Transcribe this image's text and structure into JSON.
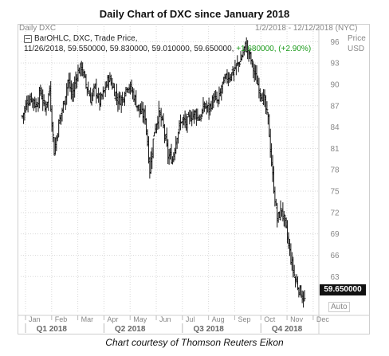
{
  "header": {
    "title": "Daily Chart of DXC since January 2018",
    "ticker_label": "Daily DXC",
    "date_range": "1/2/2018 - 12/12/2018 (NYC)",
    "price_label": "Price",
    "currency_label": "USD",
    "auto_label": "Auto"
  },
  "legend": {
    "line1": "BarOHLC, DXC, Trade Price,",
    "date": "11/26/2018,",
    "ohlc": "59.550000, 59.830000, 59.010000, 59.650000,",
    "change": "+1.680000, (+2.90%)"
  },
  "last_price_tag": "59.650000",
  "caption": "Chart courtesy of Thomson Reuters Eikon",
  "colors": {
    "bars": "#111111",
    "grid": "#d9d9d9",
    "axis_text": "#888888",
    "change": "#1a9a1a"
  },
  "chart_data": {
    "type": "bar",
    "subtype": "ohlc",
    "title": "Daily Chart of DXC since January 2018",
    "y_ticks": [
      63,
      66,
      69,
      72,
      75,
      78,
      81,
      84,
      87,
      90,
      93,
      96
    ],
    "ylim": [
      58,
      98.5
    ],
    "x_months": [
      "Jan",
      "Feb",
      "Mar",
      "Apr",
      "May",
      "Jun",
      "Jul",
      "Aug",
      "Sep",
      "Oct",
      "Nov",
      "Dec"
    ],
    "x_quarters": [
      "Q1 2018",
      "Q2 2018",
      "Q3 2018",
      "Q4 2018"
    ],
    "grid": true,
    "series": [
      {
        "name": "DXC",
        "close_weekly": [
          85.5,
          87.5,
          88.2,
          87.0,
          89.0,
          86.5,
          89.2,
          80.5,
          84.5,
          87.0,
          90.5,
          88.5,
          91.5,
          92.5,
          90.0,
          88.0,
          89.5,
          87.5,
          89.0,
          91.0,
          89.5,
          87.8,
          88.0,
          90.0,
          89.2,
          87.5,
          86.0,
          85.5,
          78.0,
          83.5,
          86.0,
          84.0,
          80.0,
          79.5,
          83.0,
          85.0,
          84.5,
          85.5,
          86.0,
          85.2,
          87.0,
          86.5,
          88.0,
          87.5,
          90.0,
          91.0,
          91.5,
          92.5,
          93.5,
          95.5,
          94.0,
          91.5,
          89.5,
          88.0,
          85.0,
          77.0,
          71.0,
          72.5,
          69.5,
          65.5,
          62.5,
          61.0,
          59.65
        ]
      }
    ]
  }
}
